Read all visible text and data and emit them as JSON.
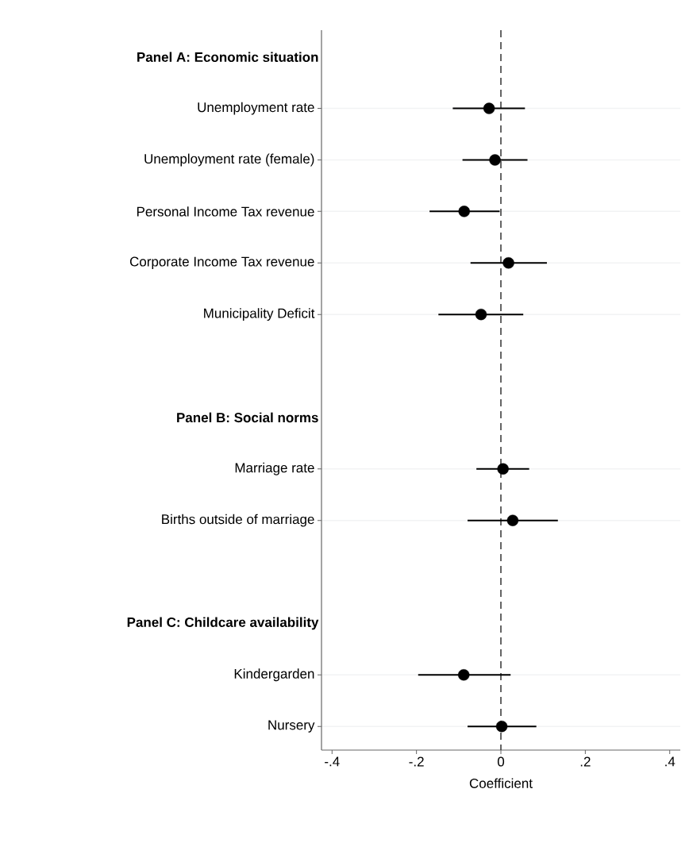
{
  "chart_data": {
    "type": "scatter",
    "orientation": "horizontal",
    "xlabel": "Coefficient",
    "categories": [
      "Panel A: Economic situation",
      "Unemployment rate",
      "Unemployment rate (female)",
      "Personal Income Tax revenue",
      "Corporate Income Tax revenue",
      "Municipality Deficit",
      null,
      "Panel B: Social norms",
      "Marriage rate",
      "Births outside of marriage",
      null,
      "Panel C: Childcare availability",
      "Kindergarden",
      "Nursery"
    ],
    "values": [
      null,
      -0.028,
      -0.014,
      -0.087,
      0.018,
      -0.047,
      null,
      null,
      0.005,
      0.028,
      null,
      null,
      -0.088,
      0.002
    ],
    "errors": [
      null,
      [
        -0.114,
        0.057
      ],
      [
        -0.091,
        0.063
      ],
      [
        -0.169,
        -0.003
      ],
      [
        -0.072,
        0.109
      ],
      [
        -0.148,
        0.053
      ],
      null,
      null,
      [
        -0.058,
        0.067
      ],
      [
        -0.079,
        0.135
      ],
      null,
      null,
      [
        -0.196,
        0.023
      ],
      [
        -0.079,
        0.084
      ]
    ],
    "color": "#000000",
    "marker": "circle",
    "grid": "y",
    "xlim": [
      -0.425,
      0.425
    ],
    "xticks": [
      {
        "value": -0.4,
        "label": "-.4"
      },
      {
        "value": -0.2,
        "label": "-.2"
      },
      0,
      {
        "value": 0.2,
        "label": ".2"
      },
      {
        "value": 0.4,
        "label": ".4"
      }
    ],
    "ref_lines": [
      {
        "axis": "x",
        "value": 0,
        "line_style": "dashed",
        "color": "#333333"
      }
    ]
  }
}
